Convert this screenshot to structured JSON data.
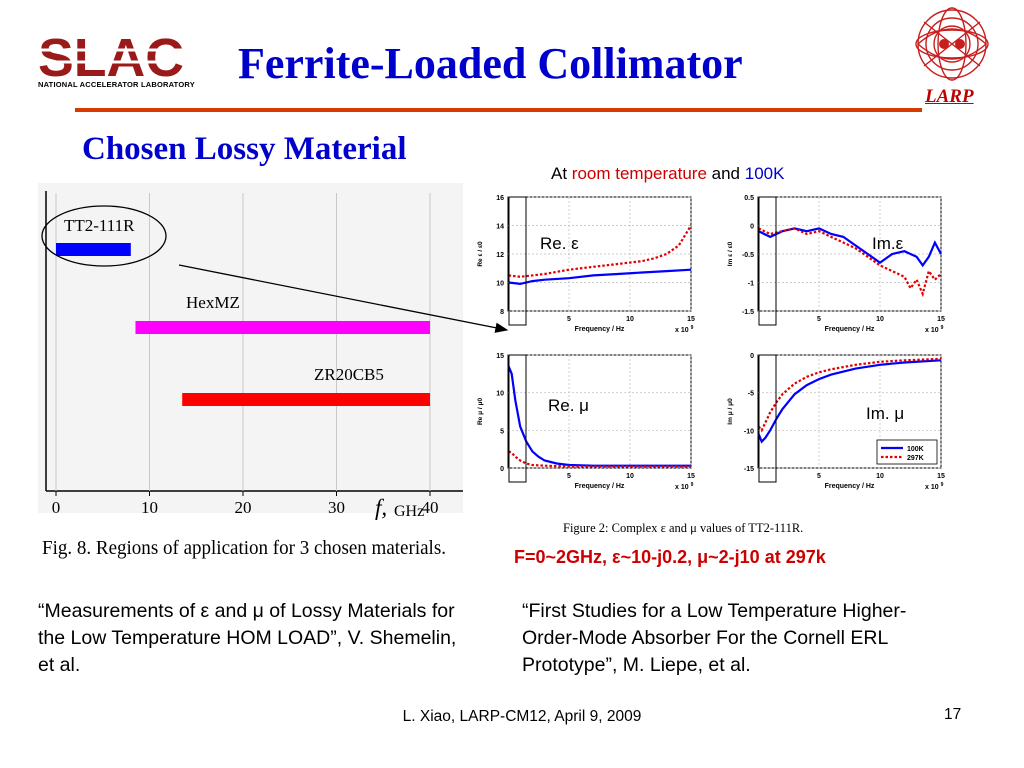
{
  "header": {
    "title": "Ferrite-Loaded Collimator",
    "slac_logo_text": "SLAC",
    "slac_subtext": "NATIONAL ACCELERATOR LABORATORY",
    "larp_text": "LARP"
  },
  "subtitle": "Chosen Lossy Material",
  "temp_note": {
    "prefix": "At ",
    "room": "room temperature",
    "and": " and ",
    "cold": "100K"
  },
  "colors": {
    "title": "#0000cc",
    "rule": "#d63a00",
    "accent_red": "#cc0000",
    "series_blue": "#0000ff",
    "series_red": "#e00000",
    "magenta": "#ff00ff"
  },
  "chart_data": [
    {
      "type": "bar",
      "orientation": "horizontal-range",
      "caption": "Fig. 8. Regions of application for 3 chosen materials.",
      "x_ticks": [
        "0",
        "10",
        "20",
        "30",
        "40"
      ],
      "xlabel_f": "f,",
      "xlabel_unit": "GHz",
      "xlim": [
        0,
        40
      ],
      "bars": [
        {
          "name": "TT2-111R",
          "start": 0,
          "end": 8,
          "color": "#0000ff"
        },
        {
          "name": "HexMZ",
          "start": 8.5,
          "end": 40,
          "color": "#ff00ff"
        },
        {
          "name": "ZR20CB5",
          "start": 13.5,
          "end": 40,
          "color": "#ff0000"
        }
      ]
    },
    {
      "type": "line",
      "caption": "Figure 2: Complex ε and μ values of TT2-111R.",
      "legend": [
        "100K",
        "297K"
      ],
      "x_multiplier": "x 10",
      "x_multiplier_exp": "9",
      "panels": [
        {
          "id": "re_eps",
          "label": "Re. ε",
          "ylabel": "Re ε / ε0",
          "xlabel": "Frequency / Hz",
          "ylim": [
            8,
            16
          ],
          "y_ticks": [
            "8",
            "10",
            "12",
            "14",
            "16"
          ],
          "x_ticks": [
            "5",
            "10",
            "15"
          ],
          "series": [
            {
              "name": "100K",
              "x": [
                0.05,
                1,
                2,
                3,
                5,
                7,
                9,
                11,
                13,
                15
              ],
              "y": [
                10.0,
                9.9,
                10.1,
                10.2,
                10.3,
                10.5,
                10.6,
                10.7,
                10.8,
                10.9
              ]
            },
            {
              "name": "297K",
              "x": [
                0.05,
                1,
                3,
                5,
                7,
                9,
                11,
                12,
                13,
                14,
                14.5,
                15
              ],
              "y": [
                10.5,
                10.4,
                10.6,
                10.9,
                11.1,
                11.3,
                11.5,
                11.7,
                12.0,
                12.6,
                13.3,
                14.0
              ]
            }
          ]
        },
        {
          "id": "im_eps",
          "label": "Im.ε",
          "ylabel": "Im ε / ε0",
          "xlabel": "Frequency / Hz",
          "ylim": [
            -1.5,
            0.5
          ],
          "y_ticks": [
            "-1.5",
            "-1",
            "-0.5",
            "0",
            "0.5"
          ],
          "x_ticks": [
            "5",
            "10",
            "15"
          ],
          "series": [
            {
              "name": "100K",
              "x": [
                0.05,
                1,
                2,
                3,
                4,
                5,
                6,
                7,
                8,
                9,
                10,
                11,
                12,
                13,
                13.5,
                14,
                14.5,
                15
              ],
              "y": [
                -0.1,
                -0.2,
                -0.1,
                -0.05,
                -0.1,
                -0.05,
                -0.15,
                -0.2,
                -0.35,
                -0.5,
                -0.65,
                -0.5,
                -0.45,
                -0.55,
                -0.7,
                -0.55,
                -0.3,
                -0.5
              ]
            },
            {
              "name": "297K",
              "x": [
                0.05,
                1,
                2,
                3,
                4,
                5,
                6,
                7,
                8,
                9,
                10,
                11,
                12,
                12.5,
                13,
                13.5,
                14,
                14.5,
                15
              ],
              "y": [
                -0.05,
                -0.15,
                -0.1,
                -0.05,
                -0.15,
                -0.1,
                -0.2,
                -0.3,
                -0.4,
                -0.55,
                -0.7,
                -0.8,
                -0.9,
                -1.1,
                -0.95,
                -1.2,
                -0.8,
                -0.95,
                -0.85
              ]
            }
          ]
        },
        {
          "id": "re_mu",
          "label": "Re. μ",
          "ylabel": "Re μ / μ0",
          "xlabel": "Frequency / Hz",
          "ylim": [
            0,
            15
          ],
          "y_ticks": [
            "0",
            "5",
            "10",
            "15"
          ],
          "x_ticks": [
            "5",
            "10",
            "15"
          ],
          "series": [
            {
              "name": "100K",
              "x": [
                0.05,
                0.3,
                0.6,
                1,
                1.5,
                2,
                2.5,
                3,
                4,
                5,
                7,
                10,
                15
              ],
              "y": [
                13.5,
                12.5,
                9,
                5.5,
                3.5,
                2.2,
                1.5,
                1.0,
                0.6,
                0.4,
                0.3,
                0.3,
                0.3
              ]
            },
            {
              "name": "297K",
              "x": [
                0.05,
                0.3,
                0.6,
                1,
                1.5,
                2,
                3,
                5,
                10,
                15
              ],
              "y": [
                2.2,
                2.0,
                1.5,
                1.0,
                0.6,
                0.4,
                0.3,
                0.2,
                0.2,
                0.2
              ]
            }
          ]
        },
        {
          "id": "im_mu",
          "label": "Im. μ",
          "ylabel": "Im μ / μ0",
          "xlabel": "Frequency / Hz",
          "ylim": [
            -15,
            0
          ],
          "y_ticks": [
            "-15",
            "-10",
            "-5",
            "0"
          ],
          "x_ticks": [
            "5",
            "10",
            "15"
          ],
          "series": [
            {
              "name": "100K",
              "x": [
                0.05,
                0.3,
                0.6,
                1,
                1.5,
                2,
                3,
                4,
                5,
                6,
                8,
                10,
                12,
                15
              ],
              "y": [
                -10.5,
                -11.5,
                -11.0,
                -10.0,
                -8.5,
                -7.2,
                -5.2,
                -4.0,
                -3.2,
                -2.6,
                -1.8,
                -1.3,
                -1.0,
                -0.7
              ]
            },
            {
              "name": "297K",
              "x": [
                0.05,
                0.3,
                0.6,
                1,
                1.5,
                2,
                3,
                4,
                5,
                6,
                8,
                10,
                12,
                15
              ],
              "y": [
                -9.5,
                -10.0,
                -9.0,
                -7.6,
                -6.3,
                -5.2,
                -3.8,
                -2.9,
                -2.3,
                -1.9,
                -1.3,
                -0.9,
                -0.7,
                -0.5
              ]
            }
          ]
        }
      ]
    }
  ],
  "summary": "F=0~2GHz, ε~10-j0.2, μ~2-j10 at 297k",
  "references": {
    "left": "“Measurements of ε and μ of Lossy Materials for the Low Temperature HOM LOAD”, V. Shemelin, et al.",
    "right": "“First Studies for a Low Temperature Higher-Order-Mode Absorber For the Cornell ERL Prototype”, M. Liepe, et al."
  },
  "footer": {
    "text": "L. Xiao, LARP-CM12, April 9, 2009",
    "page": "17"
  }
}
